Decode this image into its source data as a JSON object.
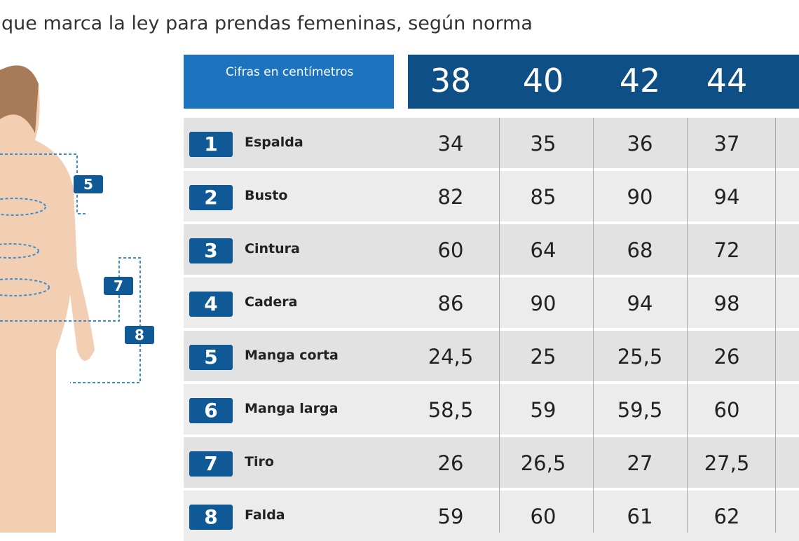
{
  "header": {
    "title": "que marca la ley para prendas femeninas, según norma"
  },
  "table": {
    "corner": "Cifras en centímetros",
    "sizes": [
      "38",
      "40",
      "42",
      "44"
    ],
    "rows": [
      {
        "number": "1",
        "label": "Espalda",
        "values": [
          "34",
          "35",
          "36",
          "37"
        ]
      },
      {
        "number": "2",
        "label": "Busto",
        "values": [
          "82",
          "85",
          "90",
          "94"
        ]
      },
      {
        "number": "3",
        "label": "Cintura",
        "values": [
          "60",
          "64",
          "68",
          "72"
        ]
      },
      {
        "number": "4",
        "label": "Cadera",
        "values": [
          "86",
          "90",
          "94",
          "98"
        ]
      },
      {
        "number": "5",
        "label": "Manga corta",
        "values": [
          "24,5",
          "25",
          "25,5",
          "26"
        ]
      },
      {
        "number": "6",
        "label": "Manga larga",
        "values": [
          "58,5",
          "59",
          "59,5",
          "60"
        ]
      },
      {
        "number": "7",
        "label": "Tiro",
        "values": [
          "26",
          "26,5",
          "27",
          "27,5"
        ]
      },
      {
        "number": "8",
        "label": "Falda",
        "values": [
          "59",
          "60",
          "61",
          "62"
        ]
      }
    ]
  },
  "figure": {
    "markers": [
      "5",
      "7",
      "8"
    ]
  }
}
